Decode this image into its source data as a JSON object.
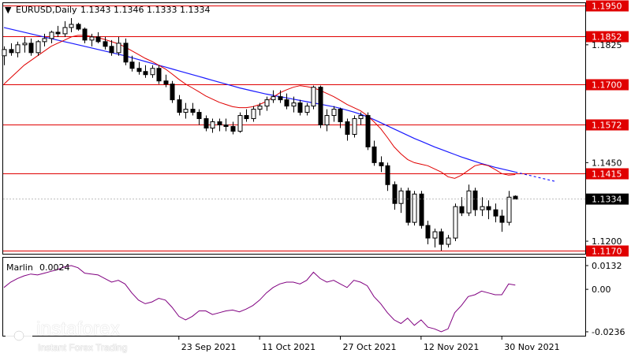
{
  "header": {
    "symbol": "EURUSD,Daily",
    "ohlc": "1.1343 1.1346 1.1333 1.1334"
  },
  "indicator": {
    "name": "Marlin",
    "value": "0.0024",
    "scale_labels": [
      "0.0132",
      "0.00",
      "-0.0236"
    ]
  },
  "price_scale": {
    "labels": [
      "1.1825",
      "1.1450",
      "1.1200"
    ],
    "levels": [
      {
        "label": "1.1950",
        "price": 1.195
      },
      {
        "label": "1.1852",
        "price": 1.1852
      },
      {
        "label": "1.1700",
        "price": 1.17
      },
      {
        "label": "1.1572",
        "price": 1.1572
      },
      {
        "label": "1.1415",
        "price": 1.1415
      },
      {
        "label": "1.1170",
        "price": 1.117
      }
    ],
    "current": {
      "label": "1.1334",
      "price": 1.1334
    }
  },
  "time_axis": [
    "23 Sep 2021",
    "11 Oct 2021",
    "27 Oct 2021",
    "12 Nov 2021",
    "30 Nov 2021"
  ],
  "watermark": {
    "name": "instaforex",
    "tagline": "Instant Forex Trading"
  },
  "colors": {
    "level": "#e00000",
    "slow_ma": "#1a1aff",
    "fast_ma": "#e00000",
    "oscillator": "#800080",
    "candle": "#000000"
  },
  "chart_data": {
    "type": "candlestick",
    "candles": [
      [
        1.179,
        1.182,
        1.176,
        1.181
      ],
      [
        1.181,
        1.183,
        1.179,
        1.18
      ],
      [
        1.18,
        1.1835,
        1.1785,
        1.1825
      ],
      [
        1.1825,
        1.185,
        1.18,
        1.183
      ],
      [
        1.183,
        1.1845,
        1.179,
        1.18
      ],
      [
        1.18,
        1.184,
        1.179,
        1.1835
      ],
      [
        1.1835,
        1.186,
        1.182,
        1.1845
      ],
      [
        1.1845,
        1.187,
        1.183,
        1.1865
      ],
      [
        1.1865,
        1.1885,
        1.185,
        1.186
      ],
      [
        1.186,
        1.19,
        1.185,
        1.188
      ],
      [
        1.188,
        1.191,
        1.1865,
        1.189
      ],
      [
        1.189,
        1.1895,
        1.187,
        1.1875
      ],
      [
        1.1875,
        1.188,
        1.183,
        1.184
      ],
      [
        1.184,
        1.186,
        1.182,
        1.185
      ],
      [
        1.185,
        1.1865,
        1.183,
        1.1835
      ],
      [
        1.1835,
        1.185,
        1.181,
        1.182
      ],
      [
        1.182,
        1.184,
        1.179,
        1.18
      ],
      [
        1.18,
        1.185,
        1.179,
        1.183
      ],
      [
        1.183,
        1.1845,
        1.176,
        1.177
      ],
      [
        1.177,
        1.179,
        1.174,
        1.175
      ],
      [
        1.175,
        1.177,
        1.173,
        1.174
      ],
      [
        1.174,
        1.176,
        1.172,
        1.173
      ],
      [
        1.173,
        1.176,
        1.172,
        1.175
      ],
      [
        1.175,
        1.176,
        1.17,
        1.171
      ],
      [
        1.171,
        1.173,
        1.169,
        1.17
      ],
      [
        1.17,
        1.171,
        1.164,
        1.165
      ],
      [
        1.165,
        1.1665,
        1.16,
        1.161
      ],
      [
        1.161,
        1.164,
        1.159,
        1.162
      ],
      [
        1.162,
        1.164,
        1.16,
        1.161
      ],
      [
        1.161,
        1.162,
        1.157,
        1.159
      ],
      [
        1.159,
        1.16,
        1.155,
        1.156
      ],
      [
        1.156,
        1.159,
        1.1545,
        1.158
      ],
      [
        1.158,
        1.159,
        1.155,
        1.157
      ],
      [
        1.157,
        1.159,
        1.155,
        1.1565
      ],
      [
        1.1565,
        1.158,
        1.154,
        1.155
      ],
      [
        1.155,
        1.161,
        1.1545,
        1.16
      ],
      [
        1.16,
        1.162,
        1.158,
        1.159
      ],
      [
        1.159,
        1.163,
        1.158,
        1.162
      ],
      [
        1.162,
        1.164,
        1.16,
        1.163
      ],
      [
        1.163,
        1.166,
        1.1615,
        1.165
      ],
      [
        1.165,
        1.168,
        1.164,
        1.166
      ],
      [
        1.166,
        1.168,
        1.164,
        1.165
      ],
      [
        1.165,
        1.167,
        1.162,
        1.163
      ],
      [
        1.163,
        1.166,
        1.161,
        1.164
      ],
      [
        1.164,
        1.165,
        1.16,
        1.161
      ],
      [
        1.161,
        1.164,
        1.16,
        1.163
      ],
      [
        1.163,
        1.1695,
        1.162,
        1.169
      ],
      [
        1.169,
        1.1695,
        1.156,
        1.157
      ],
      [
        1.157,
        1.162,
        1.155,
        1.16
      ],
      [
        1.16,
        1.163,
        1.158,
        1.162
      ],
      [
        1.162,
        1.1625,
        1.156,
        1.158
      ],
      [
        1.158,
        1.159,
        1.152,
        1.154
      ],
      [
        1.154,
        1.16,
        1.153,
        1.159
      ],
      [
        1.159,
        1.161,
        1.157,
        1.16
      ],
      [
        1.16,
        1.161,
        1.149,
        1.15
      ],
      [
        1.15,
        1.152,
        1.144,
        1.145
      ],
      [
        1.145,
        1.147,
        1.142,
        1.144
      ],
      [
        1.144,
        1.145,
        1.136,
        1.138
      ],
      [
        1.138,
        1.139,
        1.13,
        1.132
      ],
      [
        1.132,
        1.137,
        1.129,
        1.136
      ],
      [
        1.136,
        1.137,
        1.125,
        1.126
      ],
      [
        1.126,
        1.136,
        1.125,
        1.135
      ],
      [
        1.135,
        1.136,
        1.124,
        1.125
      ],
      [
        1.125,
        1.1265,
        1.119,
        1.121
      ],
      [
        1.121,
        1.124,
        1.118,
        1.123
      ],
      [
        1.123,
        1.124,
        1.117,
        1.119
      ],
      [
        1.119,
        1.122,
        1.118,
        1.121
      ],
      [
        1.121,
        1.132,
        1.12,
        1.131
      ],
      [
        1.131,
        1.134,
        1.128,
        1.129
      ],
      [
        1.129,
        1.138,
        1.128,
        1.136
      ],
      [
        1.136,
        1.137,
        1.128,
        1.13
      ],
      [
        1.13,
        1.134,
        1.128,
        1.131
      ],
      [
        1.131,
        1.133,
        1.127,
        1.13
      ],
      [
        1.13,
        1.132,
        1.126,
        1.128
      ],
      [
        1.128,
        1.13,
        1.123,
        1.126
      ],
      [
        1.126,
        1.136,
        1.125,
        1.134
      ],
      [
        1.1343,
        1.1346,
        1.1333,
        1.1334
      ]
    ],
    "fast_ma": [
      1.17,
      1.172,
      1.174,
      1.176,
      1.1775,
      1.179,
      1.1805,
      1.182,
      1.183,
      1.184,
      1.185,
      1.1855,
      1.1855,
      1.1852,
      1.1848,
      1.1842,
      1.1835,
      1.1828,
      1.1818,
      1.1806,
      1.1794,
      1.1782,
      1.1772,
      1.176,
      1.1748,
      1.1732,
      1.1715,
      1.17,
      1.1688,
      1.1675,
      1.1662,
      1.1652,
      1.1642,
      1.1635,
      1.1628,
      1.1625,
      1.1625,
      1.1628,
      1.1635,
      1.1645,
      1.1658,
      1.1672,
      1.1682,
      1.169,
      1.1695,
      1.1692,
      1.1688,
      1.168,
      1.167,
      1.166,
      1.1648,
      1.1635,
      1.1625,
      1.1615,
      1.16,
      1.158,
      1.1558,
      1.153,
      1.15,
      1.1478,
      1.146,
      1.145,
      1.1445,
      1.144,
      1.143,
      1.142,
      1.1405,
      1.14,
      1.141,
      1.1425,
      1.144,
      1.1445,
      1.144,
      1.1428,
      1.1415,
      1.141,
      1.1412
    ],
    "slow_ma": [
      1.188,
      1.1875,
      1.187,
      1.1865,
      1.186,
      1.1855,
      1.185,
      1.1845,
      1.184,
      1.1835,
      1.183,
      1.1825,
      1.182,
      1.1815,
      1.181,
      1.1805,
      1.18,
      1.1795,
      1.179,
      1.1784,
      1.1778,
      1.1772,
      1.1766,
      1.176,
      1.1754,
      1.1748,
      1.1742,
      1.1736,
      1.173,
      1.1724,
      1.1718,
      1.1712,
      1.1706,
      1.17,
      1.1694,
      1.1688,
      1.1683,
      1.1678,
      1.1673,
      1.1668,
      1.1664,
      1.166,
      1.1656,
      1.1652,
      1.1648,
      1.1644,
      1.164,
      1.1636,
      1.1632,
      1.1628,
      1.1623,
      1.1617,
      1.1611,
      1.1604,
      1.1596,
      1.1587,
      1.1577,
      1.1567,
      1.1557,
      1.1547,
      1.1537,
      1.1527,
      1.1518,
      1.1509,
      1.15,
      1.1492,
      1.1484,
      1.1476,
      1.1468,
      1.1461,
      1.1454,
      1.1447,
      1.1441,
      1.1435,
      1.143,
      1.1425,
      1.142
    ],
    "oscillator": [
      0.001,
      0.004,
      0.006,
      0.0075,
      0.0085,
      0.008,
      0.009,
      0.01,
      0.011,
      0.0125,
      0.0132,
      0.012,
      0.009,
      0.0085,
      0.008,
      0.006,
      0.004,
      0.005,
      0.003,
      -0.002,
      -0.006,
      -0.008,
      -0.007,
      -0.005,
      -0.006,
      -0.01,
      -0.015,
      -0.017,
      -0.015,
      -0.012,
      -0.012,
      -0.014,
      -0.013,
      -0.012,
      -0.0115,
      -0.0125,
      -0.011,
      -0.009,
      -0.006,
      -0.002,
      0.001,
      0.003,
      0.004,
      0.004,
      0.003,
      0.005,
      0.0095,
      0.006,
      0.004,
      0.005,
      0.003,
      0.001,
      0.005,
      0.004,
      0.002,
      -0.004,
      -0.008,
      -0.013,
      -0.017,
      -0.019,
      -0.016,
      -0.02,
      -0.017,
      -0.021,
      -0.022,
      -0.0236,
      -0.022,
      -0.013,
      -0.009,
      -0.004,
      -0.003,
      -0.001,
      -0.002,
      -0.003,
      -0.003,
      0.003,
      0.0024
    ],
    "ylim": [
      1.117,
      1.195
    ],
    "oscillator_lim": [
      -0.0236,
      0.0132
    ]
  }
}
